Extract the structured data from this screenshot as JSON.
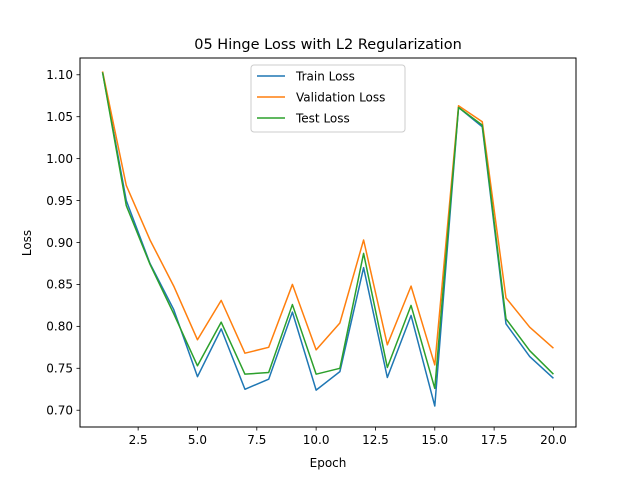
{
  "chart_data": {
    "type": "line",
    "title": "05 Hinge Loss with L2 Regularization",
    "xlabel": "Epoch",
    "ylabel": "Loss",
    "x": [
      1,
      2,
      3,
      4,
      5,
      6,
      7,
      8,
      9,
      10,
      11,
      12,
      13,
      14,
      15,
      16,
      17,
      18,
      19,
      20
    ],
    "xlim": [
      0.05,
      20.95
    ],
    "ylim": [
      0.68,
      1.12
    ],
    "xticks": [
      "2.5",
      "5.0",
      "7.5",
      "10.0",
      "12.5",
      "15.0",
      "17.5",
      "20.0"
    ],
    "yticks": [
      "0.70",
      "0.75",
      "0.80",
      "0.85",
      "0.90",
      "0.95",
      "1.00",
      "1.05",
      "1.10"
    ],
    "grid": false,
    "legend_position": "top-center",
    "series": [
      {
        "name": "Train Loss",
        "color": "#1f77b4",
        "values": [
          1.103,
          0.95,
          0.875,
          0.82,
          0.74,
          0.797,
          0.725,
          0.737,
          0.817,
          0.724,
          0.746,
          0.87,
          0.739,
          0.813,
          0.705,
          1.061,
          1.038,
          0.803,
          0.764,
          0.738
        ]
      },
      {
        "name": "Validation Loss",
        "color": "#ff7f0e",
        "values": [
          1.104,
          0.968,
          0.903,
          0.848,
          0.784,
          0.831,
          0.768,
          0.775,
          0.85,
          0.772,
          0.804,
          0.903,
          0.778,
          0.848,
          0.754,
          1.063,
          1.044,
          0.834,
          0.799,
          0.774
        ]
      },
      {
        "name": "Test Loss",
        "color": "#2ca02c",
        "values": [
          1.103,
          0.944,
          0.874,
          0.815,
          0.753,
          0.805,
          0.743,
          0.745,
          0.826,
          0.743,
          0.75,
          0.887,
          0.751,
          0.825,
          0.726,
          1.061,
          1.04,
          0.809,
          0.771,
          0.743
        ]
      }
    ]
  }
}
